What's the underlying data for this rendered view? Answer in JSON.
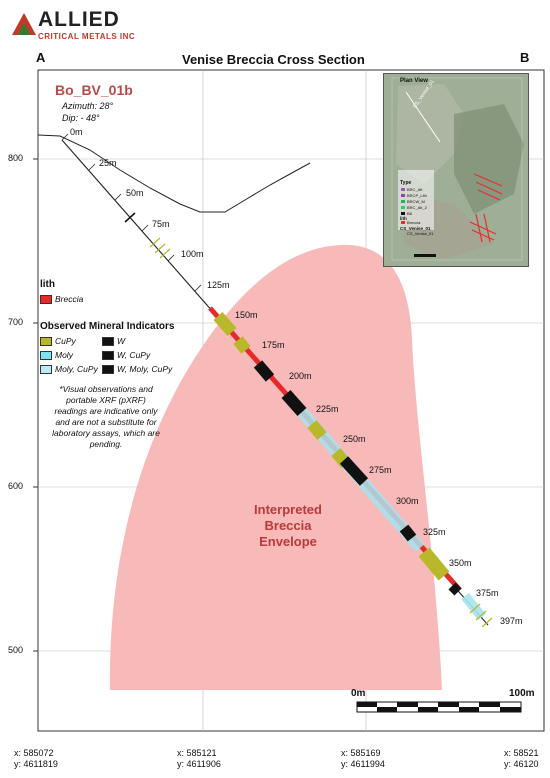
{
  "company": {
    "logo_word1": "ALLIED",
    "logo_word2": "CRITICAL METALS INC"
  },
  "map": {
    "title": "Venise Breccia Cross Section",
    "label_left": "A",
    "label_right": "B"
  },
  "drillhole": {
    "id": "Bo_BV_01b",
    "azimuth": "Azimuth: 28°",
    "dip": "Dip: - 48°",
    "depth_labels": [
      "0m",
      "25m",
      "50m",
      "75m",
      "100m",
      "125m",
      "150m",
      "175m",
      "200m",
      "225m",
      "250m",
      "275m",
      "300m",
      "325m",
      "350m",
      "375m",
      "397m"
    ]
  },
  "elevation_axis": {
    "labels": [
      "800",
      "700",
      "600",
      "500"
    ]
  },
  "legend": {
    "lith_title": "lith",
    "lith_items": [
      {
        "label": "Breccia",
        "color": "#e52a2a"
      }
    ],
    "mineral_title": "Observed Mineral Indicators",
    "mineral_items": [
      {
        "label": "CuPy",
        "color": "#b8b82a"
      },
      {
        "label": "W",
        "color": "#111111"
      },
      {
        "label": "Moly",
        "color": "#7ee0f0"
      },
      {
        "label": "W, CuPy",
        "color": "#111111"
      },
      {
        "label": "Moly, CuPy",
        "color": "#b8ecf0"
      },
      {
        "label": "W, Moly, CuPy",
        "color": "#111111"
      }
    ],
    "disclaimer": "*Visual observations and portable XRF (pXRF) readings are indicative only and are not a substitute for laboratory assays, which are pending."
  },
  "envelope": {
    "label_line1": "Interpreted",
    "label_line2": "Breccia",
    "label_line3": "Envelope",
    "fill": "#f7b3b3",
    "text_color": "#b83a3a"
  },
  "scale_bar": {
    "label_start": "0m",
    "label_end": "100m"
  },
  "inset": {
    "title": "Plan View",
    "section_label": "CS_Venise_01",
    "legend_title": "Type",
    "legend_items": [
      "BRC_Alt",
      "BRCP_Lith",
      "BRCW_M",
      "BRC_Alt_2",
      "B8"
    ],
    "lith_title": "lith",
    "lith_item": "Breccia",
    "cs_title": "CS_Venise_01",
    "cs_item": "CS_Venise_01"
  },
  "coordinates": [
    {
      "x": "x: 585072",
      "y": "y: 4611819"
    },
    {
      "x": "x: 585121",
      "y": "y: 4611906"
    },
    {
      "x": "x: 585169",
      "y": "y: 4611994"
    },
    {
      "x": "x: 58521",
      "y": "y: 46120"
    }
  ],
  "colors": {
    "breccia": "#e52a2a",
    "cupy": "#b8b82a",
    "moly": "#7ee0f0",
    "w": "#111111",
    "logo_red": "#c0392b",
    "logo_green": "#2e7d32",
    "drillhole_title": "#b84a4a"
  }
}
